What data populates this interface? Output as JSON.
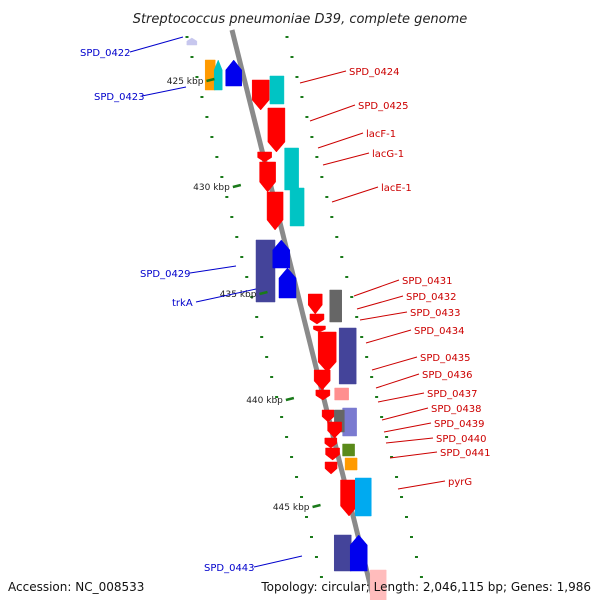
{
  "title": "Streptococcus pneumoniae D39, complete genome",
  "footer": {
    "accession": "Accession: NC_008533",
    "summary": "Topology: circular; Length: 2,046,115 bp; Genes: 1,986"
  },
  "colors": {
    "forward_label": "#0000cc",
    "reverse_label": "#cc0000",
    "backbone": "#8a8a8a",
    "tick": "#1a7a1a"
  },
  "scale_labels": [
    "425 kbp",
    "430 kbp",
    "435 kbp",
    "440 kbp",
    "445 kbp"
  ],
  "left_labels": [
    "SPD_0422",
    "SPD_0423",
    "SPD_0429",
    "trkA",
    "SPD_0443"
  ],
  "right_labels": [
    "SPD_0424",
    "SPD_0425",
    "lacF-1",
    "lacG-1",
    "lacE-1",
    "SPD_0431",
    "SPD_0432",
    "SPD_0433",
    "SPD_0434",
    "SPD_0435",
    "SPD_0436",
    "SPD_0437",
    "SPD_0438",
    "SPD_0439",
    "SPD_0440",
    "SPD_0441",
    "pyrG"
  ]
}
